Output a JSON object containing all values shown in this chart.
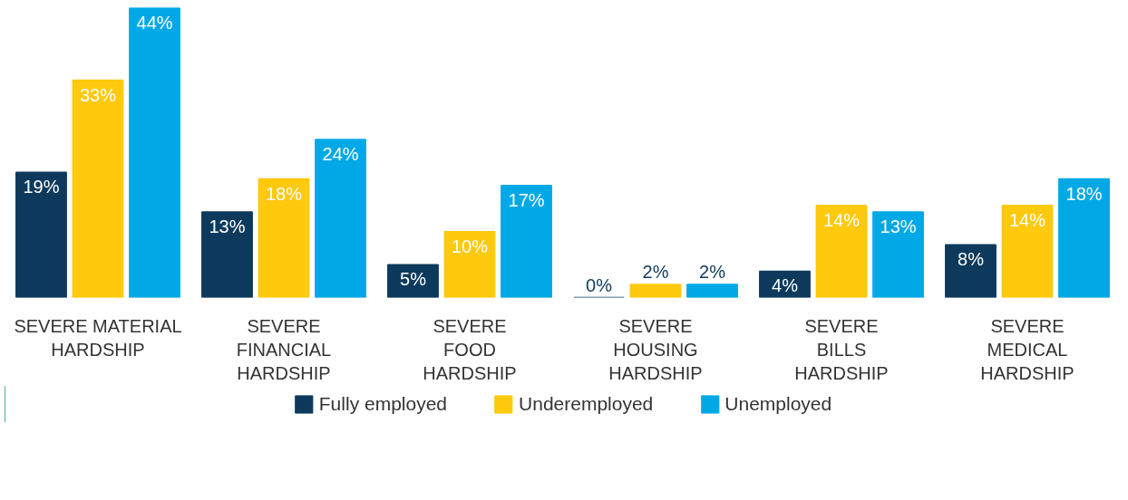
{
  "chart_data": {
    "type": "bar",
    "categories": [
      "SEVERE MATERIAL\nHARDSHIP",
      "SEVERE\nFINANCIAL\nHARDSHIP",
      "SEVERE\nFOOD\nHARDSHIP",
      "SEVERE\nHOUSING\nHARDSHIP",
      "SEVERE\nBILLS\nHARDSHIP",
      "SEVERE\nMEDICAL\nHARDSHIP"
    ],
    "series": [
      {
        "name": "Fully employed",
        "color": "#0d3a5c",
        "values": [
          19,
          13,
          5,
          0,
          4,
          8
        ],
        "value_labels": [
          "19%",
          "13%",
          "5%",
          "0%",
          "4%",
          "8%"
        ]
      },
      {
        "name": "Underemployed",
        "color": "#ffc90e",
        "values": [
          33,
          18,
          10,
          2,
          14,
          14
        ],
        "value_labels": [
          "33%",
          "18%",
          "10%",
          "2%",
          "14%",
          "14%"
        ]
      },
      {
        "name": "Unemployed",
        "color": "#00a9e6",
        "values": [
          44,
          24,
          17,
          2,
          13,
          18
        ],
        "value_labels": [
          "44%",
          "24%",
          "17%",
          "2%",
          "13%",
          "18%"
        ]
      }
    ],
    "tick_labels": "x",
    "grid": false,
    "legend": "bottom"
  }
}
